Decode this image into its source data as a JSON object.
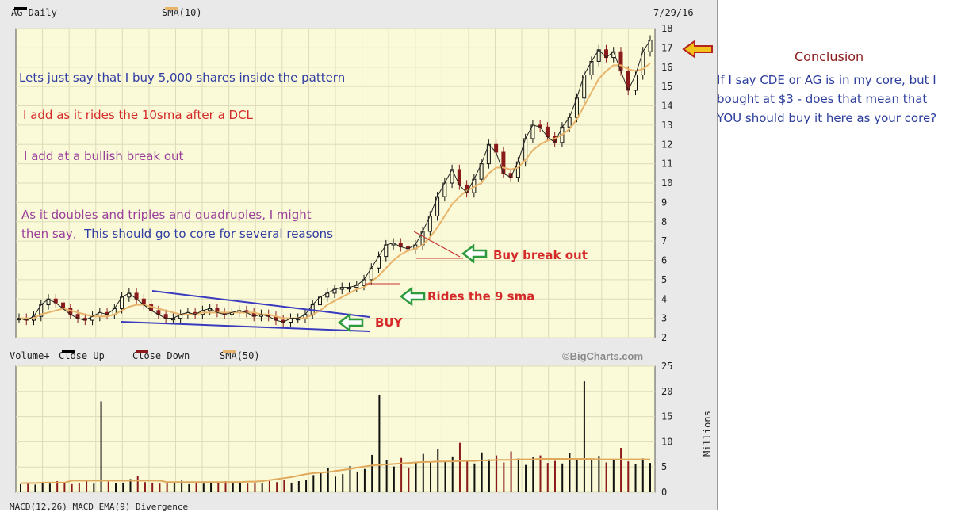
{
  "header": {
    "symbol_label": "AG Daily",
    "sma_label": "SMA(10)",
    "date": "7/29/16",
    "colors": {
      "price": "#000000",
      "sma": "#e8b36a"
    }
  },
  "annotations": {
    "line1": "Lets just say that I buy 5,000 shares inside the pattern",
    "line2": "I add as it rides the 10sma after a DCL",
    "line3": "I add at a bullish break out",
    "line4a": "As it doubles and triples and quadruples, I might",
    "line4b_purple": "then say,",
    "line4b_blue": "This should go to core for several reasons",
    "buy": "BUY",
    "rides": "Rides the 9 sma",
    "breakout": "Buy break out"
  },
  "conclusion": {
    "title": "Conclusion",
    "line1": "If I say CDE or AG is in my core, but I",
    "line2": "bought at $3 - does that mean that",
    "line3": "YOU should buy it here as your core?"
  },
  "volume_header": {
    "label": "Volume+",
    "close_up": "Close Up",
    "close_down": "Close Down",
    "sma": "SMA(50)",
    "watermark": "©BigCharts.com",
    "units": "Millions"
  },
  "macd_header": "MACD(12,26)     MACD EMA(9)     Divergence",
  "chart_data": [
    {
      "type": "line",
      "title": "AG Daily",
      "ylim": [
        2,
        18
      ],
      "y_ticks": [
        2,
        3,
        4,
        5,
        6,
        7,
        8,
        9,
        10,
        11,
        12,
        13,
        14,
        15,
        16,
        17,
        18
      ],
      "series": [
        {
          "name": "AG Daily",
          "values": [
            3.0,
            2.9,
            3.1,
            3.7,
            4.0,
            3.8,
            3.5,
            3.2,
            3.0,
            2.9,
            3.1,
            3.3,
            3.2,
            3.5,
            4.1,
            4.3,
            4.0,
            3.7,
            3.4,
            3.2,
            3.0,
            3.0,
            3.2,
            3.3,
            3.2,
            3.4,
            3.5,
            3.3,
            3.2,
            3.3,
            3.4,
            3.3,
            3.1,
            3.2,
            3.1,
            2.9,
            2.8,
            3.0,
            3.0,
            3.2,
            3.7,
            4.1,
            4.3,
            4.5,
            4.6,
            4.6,
            4.7,
            5.0,
            5.6,
            6.2,
            6.8,
            6.9,
            6.7,
            6.6,
            6.8,
            7.5,
            8.3,
            9.3,
            10.0,
            10.7,
            9.9,
            9.5,
            10.2,
            11.0,
            12.0,
            11.6,
            10.5,
            10.3,
            11.1,
            12.3,
            13.0,
            12.9,
            12.4,
            12.1,
            12.9,
            13.4,
            14.4,
            15.6,
            16.3,
            16.9,
            16.5,
            16.8,
            15.8,
            14.8,
            15.6,
            16.8,
            17.4
          ]
        },
        {
          "name": "SMA(10)",
          "values": [
            3.0,
            3.0,
            3.0,
            3.2,
            3.3,
            3.4,
            3.5,
            3.4,
            3.3,
            3.2,
            3.1,
            3.1,
            3.1,
            3.2,
            3.4,
            3.6,
            3.7,
            3.7,
            3.6,
            3.5,
            3.4,
            3.3,
            3.2,
            3.2,
            3.2,
            3.3,
            3.3,
            3.3,
            3.3,
            3.3,
            3.3,
            3.3,
            3.3,
            3.2,
            3.2,
            3.1,
            3.0,
            3.0,
            3.0,
            3.0,
            3.2,
            3.4,
            3.7,
            3.9,
            4.1,
            4.3,
            4.5,
            4.6,
            4.9,
            5.2,
            5.6,
            6.0,
            6.3,
            6.5,
            6.6,
            6.8,
            7.2,
            7.7,
            8.3,
            8.9,
            9.3,
            9.6,
            9.8,
            10.0,
            10.5,
            10.8,
            10.8,
            10.7,
            10.8,
            11.2,
            11.7,
            12.0,
            12.2,
            12.3,
            12.5,
            12.8,
            13.3,
            14.0,
            14.7,
            15.4,
            15.8,
            16.1,
            16.1,
            15.9,
            15.8,
            15.9,
            16.2
          ]
        }
      ],
      "x_label": "7/29/16"
    },
    {
      "type": "bar",
      "title": "Volume+",
      "ylabel": "Millions",
      "ylim": [
        0,
        25
      ],
      "y_ticks": [
        0,
        5,
        10,
        15,
        20,
        25
      ],
      "values": [
        1.6,
        1.8,
        1.5,
        2.0,
        1.7,
        2.2,
        1.9,
        1.6,
        1.8,
        2.4,
        1.7,
        18.0,
        2.1,
        1.8,
        1.9,
        2.6,
        3.2,
        2.0,
        1.9,
        1.7,
        2.1,
        1.8,
        2.3,
        1.6,
        1.9,
        1.7,
        2.0,
        1.8,
        2.2,
        1.9,
        2.1,
        1.7,
        1.9,
        1.8,
        2.2,
        2.0,
        2.4,
        1.9,
        2.2,
        2.5,
        3.4,
        3.9,
        4.8,
        3.1,
        3.6,
        5.2,
        4.1,
        4.6,
        7.4,
        19.2,
        6.4,
        5.1,
        6.8,
        4.9,
        5.8,
        7.6,
        6.1,
        8.5,
        6.2,
        7.1,
        9.8,
        6.4,
        5.7,
        7.9,
        6.5,
        7.3,
        5.9,
        8.1,
        6.7,
        5.4,
        6.9,
        7.3,
        5.8,
        6.2,
        5.7,
        7.8,
        6.3,
        22.0,
        6.5,
        7.2,
        5.9,
        6.4,
        8.8,
        6.1,
        5.6,
        6.7,
        5.8
      ],
      "sma_name": "SMA(50)",
      "sma_values": [
        1.8,
        1.8,
        1.8,
        1.9,
        1.9,
        1.9,
        1.9,
        2.3,
        2.3,
        2.3,
        2.3,
        2.3,
        2.3,
        2.3,
        2.3,
        2.3,
        2.3,
        2.3,
        2.3,
        2.3,
        2.0,
        2.0,
        2.0,
        2.0,
        2.0,
        2.0,
        2.0,
        2.0,
        2.0,
        2.0,
        2.0,
        2.1,
        2.1,
        2.2,
        2.4,
        2.6,
        2.8,
        3.0,
        3.3,
        3.6,
        3.8,
        3.9,
        4.0,
        4.2,
        4.4,
        4.6,
        4.9,
        5.1,
        5.3,
        5.4,
        5.5,
        5.6,
        5.7,
        5.8,
        5.9,
        6.0,
        6.0,
        6.1,
        6.1,
        6.1,
        6.2,
        6.2,
        6.2,
        6.3,
        6.3,
        6.4,
        6.4,
        6.4,
        6.5,
        6.5,
        6.5,
        6.6,
        6.6,
        6.6,
        6.6,
        6.6,
        6.6,
        6.6,
        6.6,
        6.5,
        6.5,
        6.5,
        6.5,
        6.5,
        6.5,
        6.5,
        6.5
      ]
    }
  ]
}
